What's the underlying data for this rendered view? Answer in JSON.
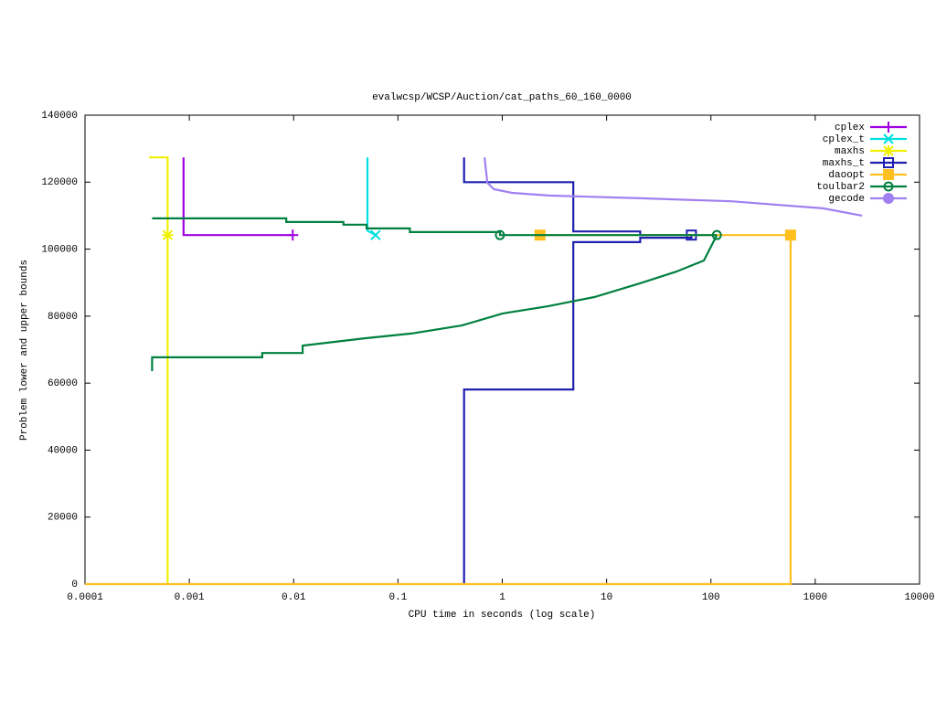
{
  "chart_data": {
    "type": "line",
    "title": "evalwcsp/WCSP/Auction/cat_paths_60_160_0000",
    "x_label": "CPU time in seconds (log scale)",
    "y_label": "Problem lower and upper bounds",
    "xlog": true,
    "xlim": [
      0.0001,
      10000
    ],
    "xticks": [
      0.0001,
      0.001,
      0.01,
      0.1,
      1,
      10,
      100,
      1000,
      10000
    ],
    "ylim": [
      0,
      140000
    ],
    "yticks": [
      0,
      20000,
      40000,
      60000,
      80000,
      100000,
      120000,
      140000
    ],
    "grid": false,
    "legend": "top-right",
    "series": [
      {
        "name": "cplex",
        "color": "#a000e0",
        "marker": "plus",
        "x": [
          0.00088,
          0.00088,
          0.0098
        ],
        "values": [
          127400,
          104200,
          104200
        ],
        "markers": {
          "x": [
            0.0098
          ],
          "y": [
            104200
          ]
        }
      },
      {
        "name": "cplex_t",
        "color": "#00e0e0",
        "marker": "cross",
        "x": [
          0.051,
          0.051,
          0.061
        ],
        "values": [
          127400,
          105500,
          104200
        ],
        "markers": {
          "x": [
            0.061
          ],
          "y": [
            104200
          ]
        }
      },
      {
        "name": "maxhs",
        "color": "#f0f000",
        "marker": "star",
        "x": [
          0.00041,
          0.00062,
          0.00062
        ],
        "values": [
          127400,
          127400,
          0
        ],
        "markers": {
          "x": [
            0.00062
          ],
          "y": [
            104200
          ]
        }
      },
      {
        "name": "maxhs_t",
        "color": "#2020b0",
        "marker": "square",
        "x": [
          0.43,
          0.43,
          4.8,
          4.8,
          21,
          21,
          65,
          null,
          0.43,
          0.43,
          4.8,
          4.8,
          21,
          21,
          65,
          65
        ],
        "values": [
          127400,
          120000,
          120000,
          105300,
          105300,
          104200,
          104200,
          null,
          0,
          58100,
          58100,
          102100,
          102100,
          103400,
          103400,
          104200
        ],
        "markers": {
          "x": [
            65
          ],
          "y": [
            104200
          ]
        }
      },
      {
        "name": "daoopt",
        "color": "#ffc020",
        "marker": "square-filled",
        "x": [
          0.0001,
          580,
          580,
          null,
          2.3,
          580
        ],
        "values": [
          0,
          0,
          104200,
          null,
          104200,
          104200
        ],
        "markers": {
          "x": [
            2.3,
            580
          ],
          "y": [
            104200,
            104200
          ]
        }
      },
      {
        "name": "toulbar2",
        "color": "#008040",
        "marker": "circle",
        "x": [
          0.00044,
          0.0085,
          0.0085,
          0.03,
          0.03,
          0.05,
          0.05,
          0.13,
          0.13,
          0.95,
          0.95,
          114,
          null,
          0.00044,
          0.00044,
          0.00046,
          0.005,
          0.005,
          0.0122,
          0.0122,
          0.049,
          0.134,
          0.408,
          1.01,
          2.77,
          7.62,
          20.9,
          46.8,
          85.7,
          114
        ],
        "values": [
          109200,
          109200,
          108100,
          108100,
          107300,
          107300,
          106200,
          106200,
          105100,
          105100,
          104200,
          104200,
          null,
          63600,
          67700,
          67700,
          67700,
          69000,
          69000,
          71200,
          73400,
          74800,
          77200,
          80800,
          83000,
          85700,
          89800,
          93300,
          96600,
          104200
        ],
        "markers": {
          "x": [
            0.95,
            114
          ],
          "y": [
            104200,
            104200
          ]
        }
      },
      {
        "name": "gecode",
        "color": "#a080f0",
        "marker": "circle-filled",
        "x": [
          0.676,
          0.72,
          0.83,
          1.24,
          2.77,
          20.9,
          157,
          1183,
          2818
        ],
        "values": [
          127400,
          119800,
          117900,
          116800,
          116000,
          115200,
          114300,
          112200,
          110000
        ],
        "markers": {
          "x": [],
          "y": []
        }
      }
    ]
  }
}
